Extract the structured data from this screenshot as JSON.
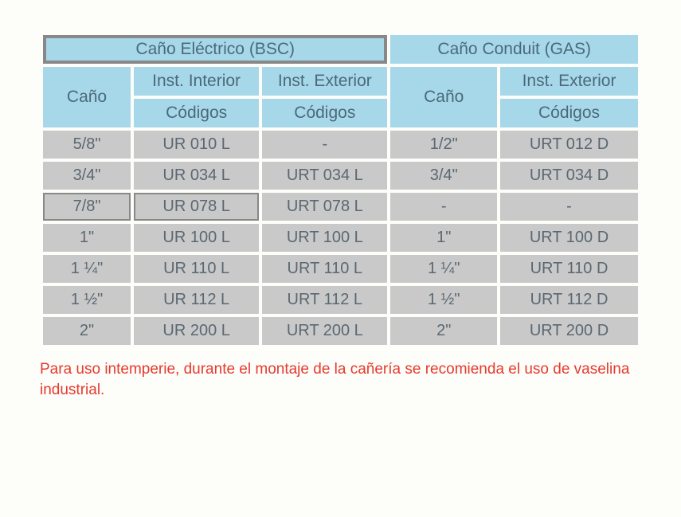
{
  "colors": {
    "header_bg": "#a7d8ea",
    "header_text": "#4a6a7a",
    "cell_bg": "#c9c9c9",
    "cell_text": "#5a6872",
    "note_text": "#e63a2e",
    "page_bg": "#fdfdf9",
    "highlight_border": "#888888"
  },
  "typography": {
    "header_fontsize": 21,
    "cell_fontsize": 20,
    "note_fontsize": 19,
    "font_family": "Arial"
  },
  "layout": {
    "border_spacing": 4,
    "col_widths_pct": [
      14,
      20,
      20,
      17,
      22
    ]
  },
  "table": {
    "type": "table",
    "top_headers": {
      "left": "Caño Eléctrico (BSC)",
      "right": "Caño Conduit (GAS)"
    },
    "sub_headers": {
      "cano_left": "Caño",
      "interior": "Inst. Interior",
      "exterior_left": "Inst. Exterior",
      "cano_right": "Caño",
      "exterior_right": "Inst. Exterior",
      "codigos": "Códigos"
    },
    "rows": [
      {
        "c1": "5/8\"",
        "c2": "UR 010 L",
        "c3": "-",
        "c4": "1/2\"",
        "c5": "URT 012 D"
      },
      {
        "c1": "3/4\"",
        "c2": "UR 034 L",
        "c3": "URT 034 L",
        "c4": "3/4\"",
        "c5": "URT 034 D"
      },
      {
        "c1": "7/8\"",
        "c2": "UR 078 L",
        "c3": "URT 078 L",
        "c4": "-",
        "c5": "-"
      },
      {
        "c1": "1\"",
        "c2": "UR 100 L",
        "c3": "URT 100 L",
        "c4": "1\"",
        "c5": "URT 100 D"
      },
      {
        "c1": "1 ¼\"",
        "c2": "UR 110 L",
        "c3": "URT 110 L",
        "c4": "1 ¼\"",
        "c5": "URT 110 D"
      },
      {
        "c1": "1 ½\"",
        "c2": "UR 112 L",
        "c3": "URT 112 L",
        "c4": "1 ½\"",
        "c5": "URT 112 D"
      },
      {
        "c1": "2\"",
        "c2": "UR 200 L",
        "c3": "URT 200 L",
        "c4": "2\"",
        "c5": "URT 200 D"
      }
    ],
    "highlights": {
      "top_header_left": true,
      "row_index": 2,
      "row_cols": [
        0,
        1
      ]
    }
  },
  "note": "Para uso intemperie, durante el montaje de la cañería se recomienda el uso de vaselina industrial."
}
